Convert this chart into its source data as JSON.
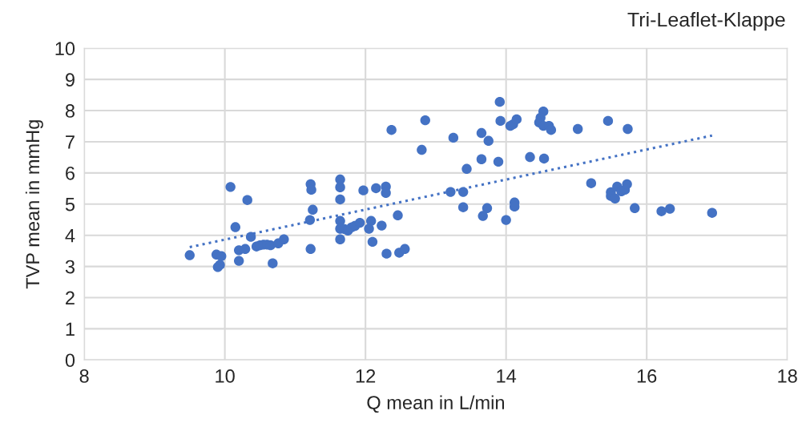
{
  "chart_data": {
    "type": "scatter",
    "title": "Tri-Leaflet-Klappe",
    "xlabel": "Q mean in L/min",
    "ylabel": "TVP mean in mmHg",
    "xlim": [
      8,
      18
    ],
    "xticks": [
      8,
      10,
      12,
      14,
      16,
      18
    ],
    "ylim": [
      0,
      10
    ],
    "yticks": [
      0,
      1,
      2,
      3,
      4,
      5,
      6,
      7,
      8,
      9,
      10
    ],
    "grid": true,
    "legend": false,
    "series": [
      {
        "color": "#4472c4",
        "marker": "circle",
        "x": [
          9.5,
          9.88,
          9.9,
          9.93,
          9.95,
          10.08,
          10.15,
          10.2,
          10.2,
          10.29,
          10.32,
          10.37,
          10.45,
          10.5,
          10.55,
          10.6,
          10.65,
          10.68,
          10.76,
          10.84,
          11.22,
          11.21,
          11.23,
          11.25,
          11.22,
          11.64,
          11.64,
          11.64,
          11.64,
          11.64,
          11.64,
          11.7,
          11.75,
          11.8,
          11.85,
          11.92,
          11.97,
          12.05,
          12.08,
          12.1,
          12.15,
          12.23,
          12.29,
          12.29,
          12.3,
          12.37,
          12.46,
          12.48,
          12.56,
          12.8,
          12.85,
          13.21,
          13.25,
          13.39,
          13.39,
          13.44,
          13.65,
          13.75,
          13.65,
          13.89,
          13.91,
          13.92,
          13.73,
          13.67,
          14.0,
          14.12,
          14.12,
          14.06,
          14.1,
          14.15,
          14.34,
          14.54,
          14.53,
          14.49,
          14.47,
          14.53,
          14.61,
          14.64,
          15.02,
          15.45,
          15.21,
          15.73,
          15.49,
          15.49,
          15.55,
          15.58,
          15.64,
          15.69,
          15.72,
          15.83,
          16.21,
          16.33,
          16.93
        ],
        "values": [
          3.36,
          3.38,
          2.98,
          3.05,
          3.33,
          5.55,
          4.26,
          3.52,
          3.18,
          3.56,
          5.13,
          3.95,
          3.64,
          3.68,
          3.7,
          3.7,
          3.68,
          3.1,
          3.74,
          3.87,
          5.64,
          4.49,
          5.46,
          4.82,
          3.56,
          5.79,
          5.54,
          5.15,
          4.46,
          4.21,
          3.87,
          4.2,
          4.15,
          4.25,
          4.3,
          4.4,
          5.44,
          4.21,
          4.46,
          3.79,
          5.51,
          4.31,
          5.56,
          5.36,
          3.41,
          7.38,
          4.64,
          3.44,
          3.56,
          6.74,
          7.69,
          5.39,
          7.13,
          5.39,
          4.9,
          6.13,
          7.28,
          7.03,
          6.44,
          6.36,
          8.28,
          7.67,
          4.87,
          4.62,
          4.49,
          5.05,
          4.92,
          7.51,
          7.56,
          7.72,
          6.51,
          6.46,
          7.97,
          7.77,
          7.62,
          7.51,
          7.51,
          7.38,
          7.41,
          7.67,
          5.67,
          7.41,
          5.38,
          5.26,
          5.18,
          5.56,
          5.41,
          5.46,
          5.64,
          4.87,
          4.77,
          4.85,
          4.72
        ]
      },
      {
        "type": "line",
        "color": "#4472c4",
        "line_style": "dotted",
        "marker": "none",
        "x": [
          9.5,
          16.93
        ],
        "values": [
          3.62,
          7.2
        ]
      }
    ]
  }
}
